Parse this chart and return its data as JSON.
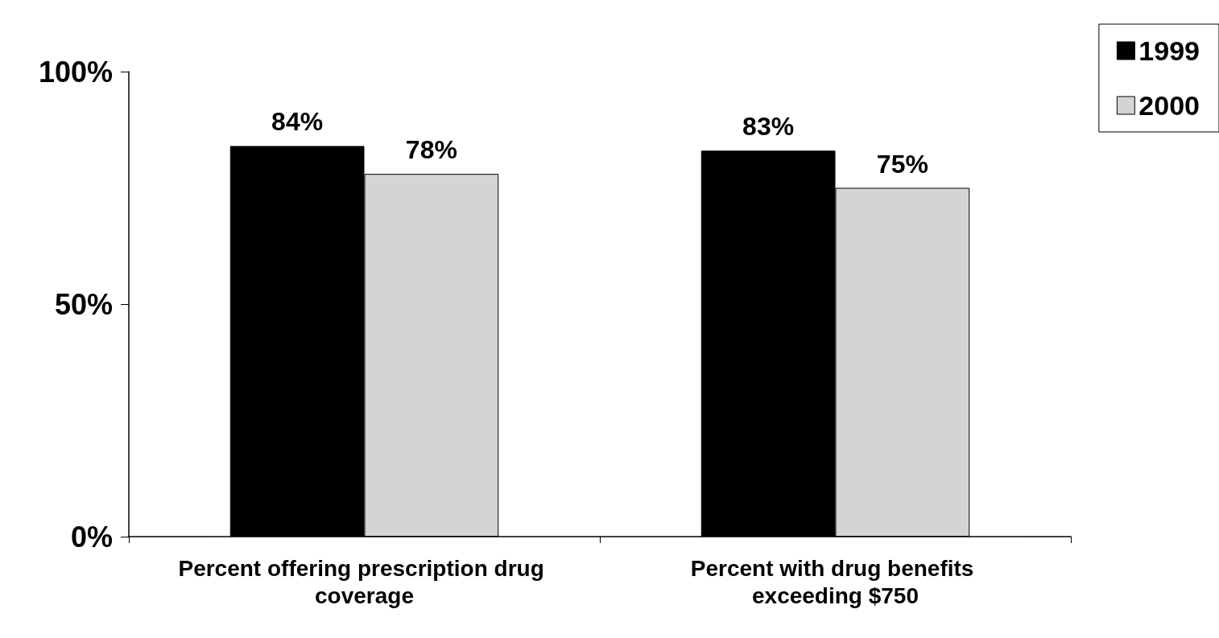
{
  "chart_data": {
    "type": "bar",
    "categories": [
      "Percent offering prescription drug coverage",
      "Percent with drug benefits exceeding $750"
    ],
    "series": [
      {
        "name": "1999",
        "color": "#000000",
        "values": [
          84,
          83
        ],
        "value_labels": [
          "84%",
          "83%"
        ]
      },
      {
        "name": "2000",
        "color": "#d4d4d4",
        "values": [
          78,
          75
        ],
        "value_labels": [
          "78%",
          "75%"
        ]
      }
    ],
    "ylim": [
      0,
      100
    ],
    "yticks": [
      {
        "value": 0,
        "label": "0%"
      },
      {
        "value": 50,
        "label": "50%"
      },
      {
        "value": 100,
        "label": "100%"
      }
    ],
    "grid": false,
    "legend": "top right"
  }
}
